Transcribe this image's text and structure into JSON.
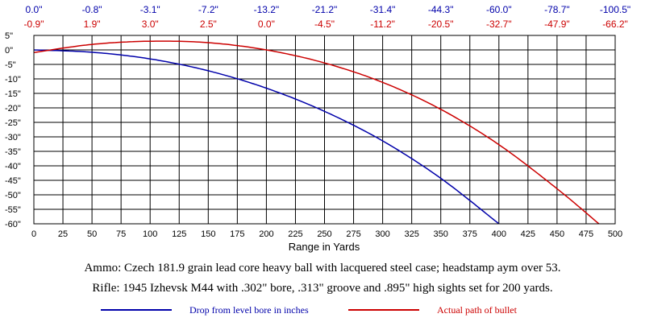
{
  "chart_data": {
    "type": "line",
    "xlabel": "Range in Yards",
    "ylabel": "",
    "xlim": [
      0,
      500
    ],
    "ylim": [
      -60,
      5
    ],
    "x_ticks": [
      0,
      25,
      50,
      75,
      100,
      125,
      150,
      175,
      200,
      225,
      250,
      275,
      300,
      325,
      350,
      375,
      400,
      425,
      450,
      475,
      500
    ],
    "x_tick_labels": [
      "0",
      "25",
      "50",
      "75",
      "100",
      "125",
      "150",
      "175",
      "200",
      "225",
      "250",
      "275",
      "300",
      "325",
      "350",
      "375",
      "400",
      "425",
      "450",
      "475",
      "500"
    ],
    "y_ticks": [
      5,
      0,
      -5,
      -10,
      -15,
      -20,
      -25,
      -30,
      -35,
      -40,
      -45,
      -50,
      -55,
      -60
    ],
    "y_tick_labels": [
      "5\"",
      "0\"",
      "-5\"",
      "-10\"",
      "-15\"",
      "-20\"",
      "-25\"",
      "-30\"",
      "-35\"",
      "-40\"",
      "-45\"",
      "-50\"",
      "-55\"",
      "-60\""
    ],
    "grid": true,
    "top_label_x": [
      0,
      50,
      100,
      150,
      200,
      250,
      300,
      350,
      400,
      450,
      500
    ],
    "top_labels_drop": [
      "0.0\"",
      "-0.8\"",
      "-3.1\"",
      "-7.2\"",
      "-13.2\"",
      "-21.2\"",
      "-31.4\"",
      "-44.3\"",
      "-60.0\"",
      "-78.7\"",
      "-100.5\""
    ],
    "top_labels_path": [
      "-0.9\"",
      "1.9\"",
      "3.0\"",
      "2.5\"",
      "0.0\"",
      "-4.5\"",
      "-11.2\"",
      "-20.5\"",
      "-32.7\"",
      "-47.9\"",
      "-66.2\""
    ],
    "series": [
      {
        "name": "Drop from level bore in inches",
        "color": "#0000aa",
        "x": [
          0,
          50,
          100,
          150,
          200,
          250,
          300,
          350,
          400
        ],
        "y": [
          0.0,
          -0.8,
          -3.1,
          -7.2,
          -13.2,
          -21.2,
          -31.4,
          -44.3,
          -60.0
        ]
      },
      {
        "name": "Actual path of bullet",
        "color": "#cc0000",
        "x": [
          0,
          50,
          100,
          150,
          200,
          250,
          300,
          350,
          400,
          450,
          486
        ],
        "y": [
          -0.9,
          1.9,
          3.0,
          2.5,
          0.0,
          -4.5,
          -11.2,
          -20.5,
          -32.7,
          -47.9,
          -60.0
        ]
      }
    ]
  },
  "notes": {
    "ammo": "Ammo:  Czech 181.9 grain lead core heavy ball with lacquered steel case; headstamp aym over 53.",
    "rifle": "Rifle:  1945 Izhevsk M44 with .302\" bore, .313\" groove and .895\" high sights set for 200 yards."
  },
  "legend": {
    "drop_label": "Drop from level bore in inches",
    "path_label": "Actual path of bullet"
  }
}
